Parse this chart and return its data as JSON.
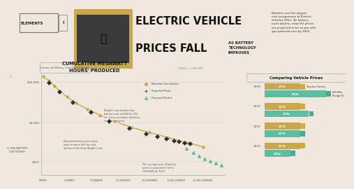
{
  "bg_color": "#f0e8df",
  "title_line1": "ELECTRIC VEHICLE",
  "title_line2": "PRICES FALL",
  "title_sub": "AS BATTERY\nTECHNOLOGY\nIMPROVES",
  "elements_label": "ELEMENTS",
  "desc_text": "Batteries are the largest\ncost components of Electric\nVehicles (EVs). As battery\ncosts decline, retail EV prices\nare projected to be on par with\ngas-powered cars by 2023.",
  "chart_title_line1": "CUMULATIVE MEGAWATT",
  "chart_title_line2": "HOURS' PRODUCED",
  "chart_subtitle": "*1MWH = 1,000KWH",
  "y_label": "LI-ION BATTERY\nCOSTS/KWH",
  "y_tick_labels": [
    "$10,000",
    "$1,000",
    "$100"
  ],
  "y_tick_pos": [
    0.92,
    0.52,
    0.13
  ],
  "x_ticks": [
    "0MWH",
    "100MWH",
    "1,000MWH",
    "10,000MWH",
    "100,000MWH",
    "1,000,000MWH",
    "10,000,000MWH"
  ],
  "x_tick_pos": [
    0.01,
    0.155,
    0.3,
    0.445,
    0.59,
    0.735,
    0.88
  ],
  "modeled_color": "#c8a84b",
  "reported_color": "#2a2a2a",
  "forecast_color": "#5bbea0",
  "legend_items": [
    "Modeled Cost Decline",
    "Reported Prices",
    "Forecast Decline"
  ],
  "bar_chart_title": "Comparing Vehicle Prices",
  "bar_years": [
    "2009",
    "2021",
    "2022",
    "2025"
  ],
  "bar_gas_vals": [
    0.58,
    0.58,
    0.58,
    0.58
  ],
  "bar_ev_vals": [
    1.0,
    0.72,
    0.58,
    0.42
  ],
  "bar_gas_color": "#c8a84b",
  "bar_ev_color": "#5bbea0",
  "bar_gas_labels": [
    "$27k",
    "$27k",
    "$27k",
    "$27k"
  ],
  "bar_ev_labels": [
    "$53k",
    "$39k",
    "$27k",
    "$22k"
  ],
  "wrights_ann": "Wright's Law predicts that\nbattery costs will fall by 28%\nfor every cumulative doubling\nof units produced.",
  "reported_ann": "Reported battery prices have\nbeen on trend with the cost\ndecline modeled by Wright's Law.",
  "forecast_ann": "The average price of battery\npacks is projected to fall to\n$100/kWh by 2023.",
  "modeled_x": [
    0.01,
    0.04,
    0.07,
    0.1,
    0.14,
    0.19,
    0.25,
    0.32,
    0.4,
    0.49,
    0.59,
    0.69,
    0.79,
    0.88
  ],
  "modeled_y": [
    0.97,
    0.93,
    0.88,
    0.83,
    0.77,
    0.71,
    0.65,
    0.59,
    0.53,
    0.47,
    0.42,
    0.37,
    0.32,
    0.28
  ],
  "reported_x": [
    0.04,
    0.1,
    0.17,
    0.27,
    0.37,
    0.48,
    0.57,
    0.63,
    0.68,
    0.72,
    0.75,
    0.78,
    0.81
  ],
  "reported_y": [
    0.91,
    0.82,
    0.72,
    0.62,
    0.53,
    0.46,
    0.41,
    0.38,
    0.36,
    0.34,
    0.33,
    0.32,
    0.31
  ],
  "forecast_x": [
    0.79,
    0.83,
    0.86,
    0.89,
    0.92,
    0.95,
    0.98
  ],
  "forecast_y": [
    0.26,
    0.22,
    0.19,
    0.16,
    0.14,
    0.12,
    0.1
  ]
}
